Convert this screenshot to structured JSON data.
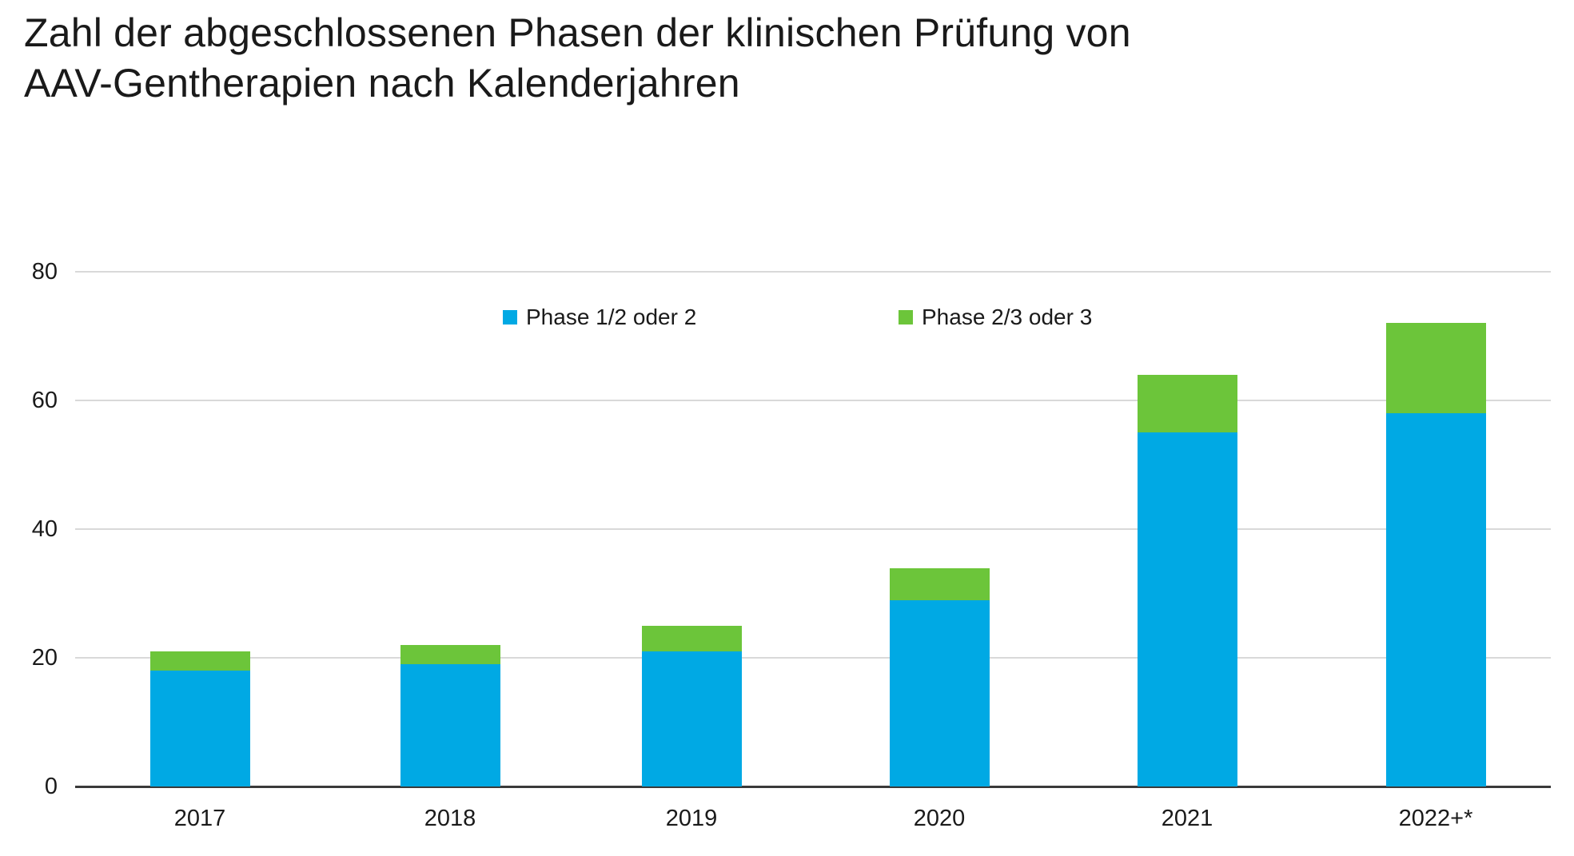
{
  "title": {
    "lines": [
      "Zahl der abgeschlossenen Phasen der klinischen Prüfung von",
      "AAV-Gentherapien nach Kalenderjahren"
    ],
    "full": "Zahl der abgeschlossenen Phasen der klinischen Prüfung von AAV-Gentherapien nach Kalenderjahren"
  },
  "colors": {
    "phase_1_2": "#00a9e4",
    "phase_2_3": "#6cc53a",
    "gridline": "#d9d9d9",
    "axis_line": "#3a3a3a",
    "text": "#1a1a1a"
  },
  "legend": [
    {
      "label": "Phase 1/2 oder 2",
      "color": "#00a9e4"
    },
    {
      "label": "Phase 2/3 oder 3",
      "color": "#6cc53a"
    }
  ],
  "chart_data": {
    "type": "bar",
    "stacked": true,
    "title": "Zahl der abgeschlossenen Phasen der klinischen Prüfung von AAV-Gentherapien nach Kalenderjahren",
    "categories": [
      "2017",
      "2018",
      "2019",
      "2020",
      "2021",
      "2022+*"
    ],
    "series": [
      {
        "name": "Phase 1/2 oder 2",
        "color": "#00a9e4",
        "values": [
          18,
          19,
          21,
          29,
          55,
          58
        ]
      },
      {
        "name": "Phase 2/3 oder 3",
        "color": "#6cc53a",
        "values": [
          3,
          3,
          4,
          5,
          9,
          14
        ]
      }
    ],
    "totals": [
      21,
      22,
      25,
      34,
      64,
      72
    ],
    "xlabel": "",
    "ylabel": "",
    "ylim": [
      0,
      80
    ],
    "yticks": [
      0,
      20,
      40,
      60,
      80
    ],
    "grid": true,
    "legend_position": "top-inside"
  }
}
